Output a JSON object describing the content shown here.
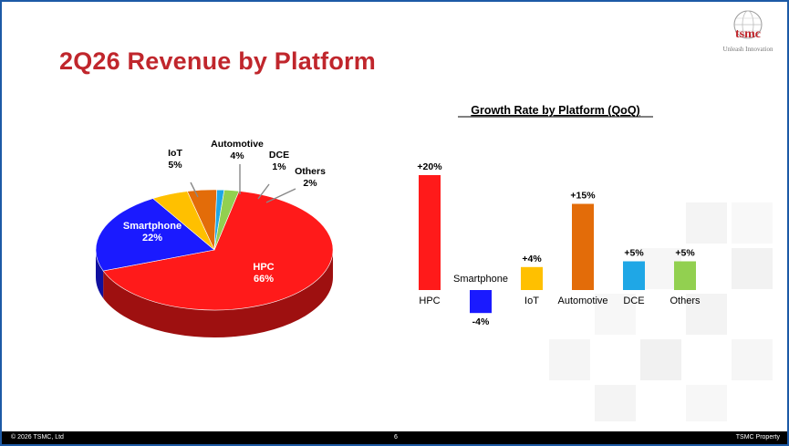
{
  "slide": {
    "title": "2Q26 Revenue by Platform",
    "logo_text": "tsmc",
    "logo_tagline": "Unleash Innovation",
    "footer_left": "© 2026 TSMC, Ltd",
    "page_number": "6",
    "footer_right": "TSMC Property"
  },
  "chart_data": [
    {
      "type": "pie",
      "title": "",
      "slices": [
        {
          "label": "HPC",
          "value": 66,
          "color": "#ff1a1a"
        },
        {
          "label": "Smartphone",
          "value": 22,
          "color": "#1a1aff"
        },
        {
          "label": "IoT",
          "value": 5,
          "color": "#ffc000"
        },
        {
          "label": "Automotive",
          "value": 4,
          "color": "#e36c09"
        },
        {
          "label": "DCE",
          "value": 1,
          "color": "#1fa7e6"
        },
        {
          "label": "Others",
          "value": 2,
          "color": "#92d050"
        }
      ]
    },
    {
      "type": "bar",
      "title": "Growth Rate by Platform (QoQ)",
      "categories": [
        "HPC",
        "Smartphone",
        "IoT",
        "Automotive",
        "DCE",
        "Others"
      ],
      "values": [
        20,
        -4,
        4,
        15,
        5,
        5
      ],
      "value_labels": [
        "+20%",
        "-4%",
        "+4%",
        "+15%",
        "+5%",
        "+5%"
      ],
      "colors": [
        "#ff1a1a",
        "#1a1aff",
        "#ffc000",
        "#e36c09",
        "#1fa7e6",
        "#92d050"
      ],
      "unit": "%",
      "grid": false
    }
  ]
}
